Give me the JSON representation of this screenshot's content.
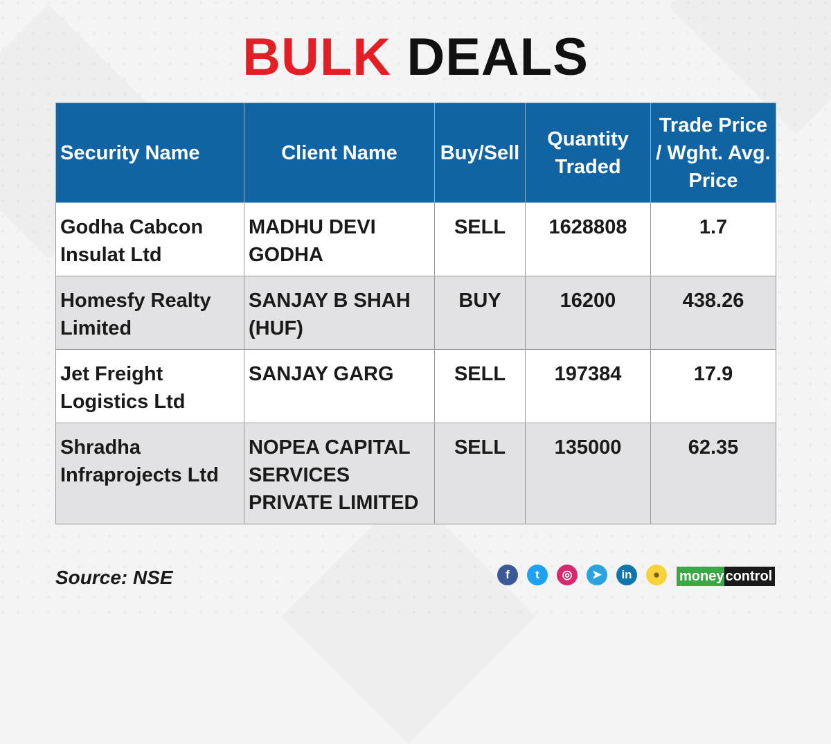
{
  "title": {
    "part1": "BULK",
    "part2": "DEALS"
  },
  "table": {
    "headers": [
      "Security Name",
      "Client Name",
      "Buy/Sell",
      "Quantity Traded",
      "Trade Price / Wght. Avg. Price"
    ],
    "rows": [
      [
        "Godha Cabcon Insulat Ltd",
        "MADHU DEVI GODHA",
        "SELL",
        "1628808",
        "1.7"
      ],
      [
        "Homesfy Realty Limited",
        "SANJAY B SHAH (HUF)",
        "BUY",
        "16200",
        "438.26"
      ],
      [
        "Jet Freight Logistics Ltd",
        "SANJAY GARG",
        "SELL",
        "197384",
        "17.9"
      ],
      [
        "Shradha Infraprojects Ltd",
        "NOPEA CAPITAL SERVICES PRIVATE LIMITED",
        "SELL",
        "135000",
        "62.35"
      ]
    ]
  },
  "footer": {
    "source": "Source: NSE",
    "social_icons": [
      {
        "name": "facebook-icon",
        "glyph": "f",
        "color": "#3b5998"
      },
      {
        "name": "twitter-icon",
        "glyph": "t",
        "color": "#1da1f2"
      },
      {
        "name": "instagram-icon",
        "glyph": "◎",
        "color": "#d6296f"
      },
      {
        "name": "telegram-icon",
        "glyph": "➤",
        "color": "#2aa3df"
      },
      {
        "name": "linkedin-icon",
        "glyph": "in",
        "color": "#0e76a8"
      },
      {
        "name": "koo-icon",
        "glyph": "●",
        "color": "#f7d23b"
      }
    ],
    "brand": {
      "part1": "money",
      "part2": "control"
    }
  },
  "colors": {
    "accent_red": "#e31e24",
    "header_blue": "#1064a3",
    "row_alt": "#e2e2e4"
  }
}
